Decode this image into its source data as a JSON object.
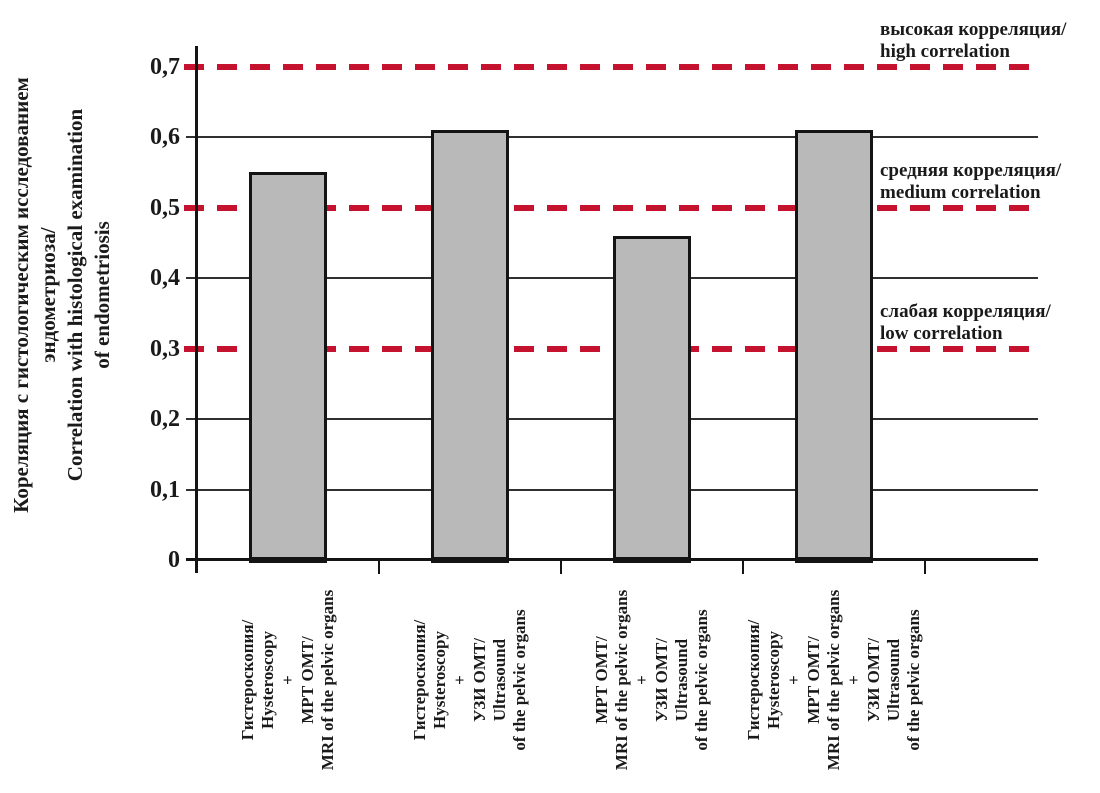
{
  "chart_data": {
    "type": "bar",
    "title": "",
    "ylabel_lines": [
      "Кореляция с гистологическим исследованием",
      "эндометриоза/",
      "Correlation with histological examination",
      "of endometriosis"
    ],
    "categories": [
      {
        "lines": [
          "Гистероскопия/",
          "Hysteroscopy",
          "+",
          "МРТ ОМТ/",
          "MRI of the pelvic organs"
        ]
      },
      {
        "lines": [
          "Гистероскопия/",
          "Hysteroscopy",
          "+",
          "УЗИ ОМТ/",
          "Ultrasound",
          "of the pelvic organs"
        ]
      },
      {
        "lines": [
          "МРТ ОМТ/",
          "MRI of the pelvic organs",
          "+",
          "УЗИ ОМТ/",
          "Ultrasound",
          "of the pelvic organs"
        ]
      },
      {
        "lines": [
          "Гистероскопия/",
          "Hysteroscopy",
          "+",
          "МРТ ОМТ/",
          "MRI of the pelvic organs",
          "+",
          "УЗИ ОМТ/",
          "Ultrasound",
          "of the pelvic organs"
        ]
      }
    ],
    "values": [
      0.55,
      0.61,
      0.46,
      0.61
    ],
    "ylim": [
      0,
      0.7
    ],
    "ytick_values": [
      0,
      0.1,
      0.2,
      0.3,
      0.4,
      0.5,
      0.6,
      0.7
    ],
    "ytick_labels": [
      "0",
      "0,1",
      "0,2",
      "0,3",
      "0,4",
      "0,5",
      "0,6",
      "0,7"
    ],
    "solid_gridlines": [
      0.1,
      0.2,
      0.4,
      0.6
    ],
    "reference_lines": [
      {
        "value": 0.7,
        "lines": [
          "высокая корреляция/",
          "high correlation"
        ]
      },
      {
        "value": 0.5,
        "lines": [
          "средняя корреляция/",
          "medium correlation"
        ]
      },
      {
        "value": 0.3,
        "lines": [
          "слабая корреляция/",
          "low correlation"
        ]
      }
    ],
    "grid": "horizontal",
    "legend_position": "none",
    "colors": {
      "bar_fill": "#b9b9b9",
      "bar_border": "#141414",
      "reference_line": "#c5122f",
      "gridline": "#303030",
      "text": "#1a1a1a"
    }
  }
}
